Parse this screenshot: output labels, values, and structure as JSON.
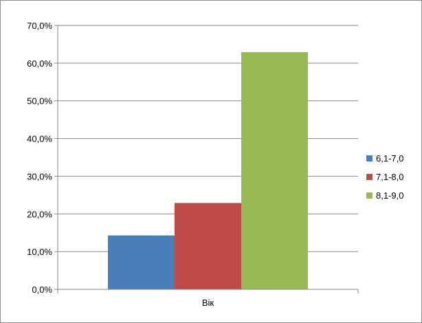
{
  "chart_data": {
    "type": "bar",
    "title": "",
    "xlabel": "",
    "ylabel": "",
    "categories": [
      "Вік"
    ],
    "series": [
      {
        "name": "6,1-7,0",
        "values": [
          0.143
        ],
        "color": "#4a7ebb"
      },
      {
        "name": "7,1-8,0",
        "values": [
          0.229
        ],
        "color": "#be4b48"
      },
      {
        "name": "8,1-9,0",
        "values": [
          0.629
        ],
        "color": "#98b954"
      }
    ],
    "ylim": [
      0,
      0.7
    ],
    "yticks": [
      {
        "value": 0.0,
        "label": "0,0%"
      },
      {
        "value": 0.1,
        "label": "10,0%"
      },
      {
        "value": 0.2,
        "label": "20,0%"
      },
      {
        "value": 0.3,
        "label": "30,0%"
      },
      {
        "value": 0.4,
        "label": "40,0%"
      },
      {
        "value": 0.5,
        "label": "50,0%"
      },
      {
        "value": 0.6,
        "label": "60,0%"
      },
      {
        "value": 0.7,
        "label": "70,0%"
      }
    ],
    "grid": true,
    "legend_position": "right",
    "gridline_color": "#868686",
    "axis_color": "#868686"
  }
}
